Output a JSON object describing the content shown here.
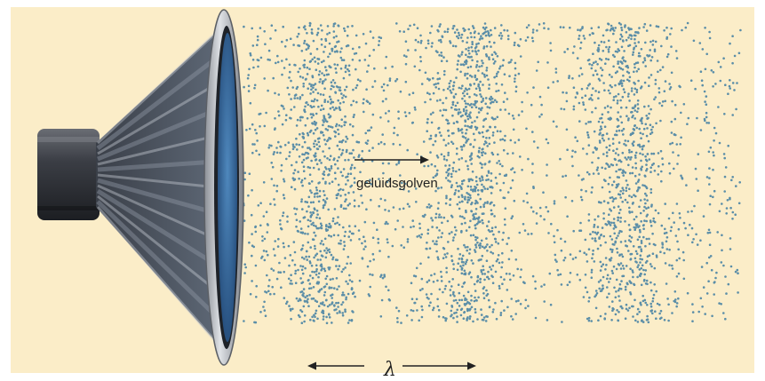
{
  "colors": {
    "background": "#fbedc8",
    "particle": "#5b8ea8",
    "speaker_metal": "#3a3d44",
    "speaker_rim": "#b8bcc2",
    "speaker_cone": "#2e5f92",
    "arrow": "#222222"
  },
  "labels": {
    "wave": "geluidsgolven",
    "wavelength": "λ"
  },
  "icons": [
    "loudspeaker-icon"
  ],
  "compression_bands": 3
}
